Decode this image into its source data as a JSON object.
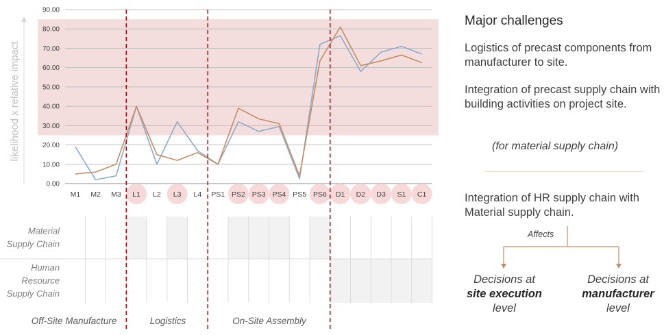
{
  "chart_data": {
    "type": "line",
    "ylabel": "likelihood x relative impact",
    "ylim": [
      0,
      90
    ],
    "yticks": [
      "0.00",
      "10.00",
      "20.00",
      "30.00",
      "40.00",
      "50.00",
      "60.00",
      "70.00",
      "80.00",
      "90.00"
    ],
    "grid": true,
    "categories": [
      "M1",
      "M2",
      "M3",
      "L1",
      "L2",
      "L3",
      "L4",
      "PS1",
      "PS2",
      "PS3",
      "PS4",
      "PS5",
      "PS6",
      "D1",
      "D2",
      "D3",
      "S1",
      "C1"
    ],
    "highlighted_categories": [
      "L1",
      "L3",
      "PS2",
      "PS3",
      "PS4",
      "PS6",
      "D1",
      "D2",
      "D3",
      "S1",
      "C1"
    ],
    "highlight_band": [
      25,
      85
    ],
    "series": [
      {
        "color": "#8eaacb",
        "values": [
          19,
          2,
          4,
          40,
          10,
          32,
          17,
          10,
          32,
          27,
          29.5,
          2.5,
          72,
          76.5,
          58,
          68,
          71,
          67
        ]
      },
      {
        "color": "#c58d67",
        "values": [
          5,
          6,
          10,
          40,
          15,
          12,
          16,
          10,
          39,
          33.5,
          31,
          4,
          63.5,
          81,
          61,
          63.5,
          66.5,
          62.5
        ]
      }
    ],
    "phase_dividers_after": [
      "M3",
      "L4",
      "PS6"
    ],
    "phases": [
      "Off-Site Manufacture",
      "Logistics",
      "On-Site Assembly"
    ],
    "row_labels": [
      [
        "Material",
        "Supply Chain"
      ],
      [
        "Human",
        "Resource",
        "Supply Chain"
      ]
    ],
    "material_shaded": [
      "L1",
      "L3",
      "PS2",
      "PS3",
      "PS4",
      "PS6"
    ],
    "hr_shaded": [
      "D1",
      "D2",
      "D3",
      "S1",
      "C1"
    ]
  },
  "colors": {
    "band": "#f4dedd",
    "divider": "#c00000",
    "highlight_circle": "#f7d9d9",
    "shaded_cell": "#f2f2f2",
    "grid": "#a6a6a6",
    "arrow": "#c58d67"
  },
  "panel": {
    "title": "Major challenges",
    "item1": "Logistics of precast components from manufacturer to site.",
    "item2": "Integration of precast supply chain with building activities on project site.",
    "note": "(for material supply chain)",
    "item3": "Integration of HR supply chain with Material supply chain.",
    "affects": "Affects",
    "decision_left": {
      "pre": "Decisions at",
      "bold": "site execution",
      "post": "level"
    },
    "decision_right": {
      "pre": "Decisions at",
      "bold": "manufacturer",
      "post": "level"
    }
  }
}
